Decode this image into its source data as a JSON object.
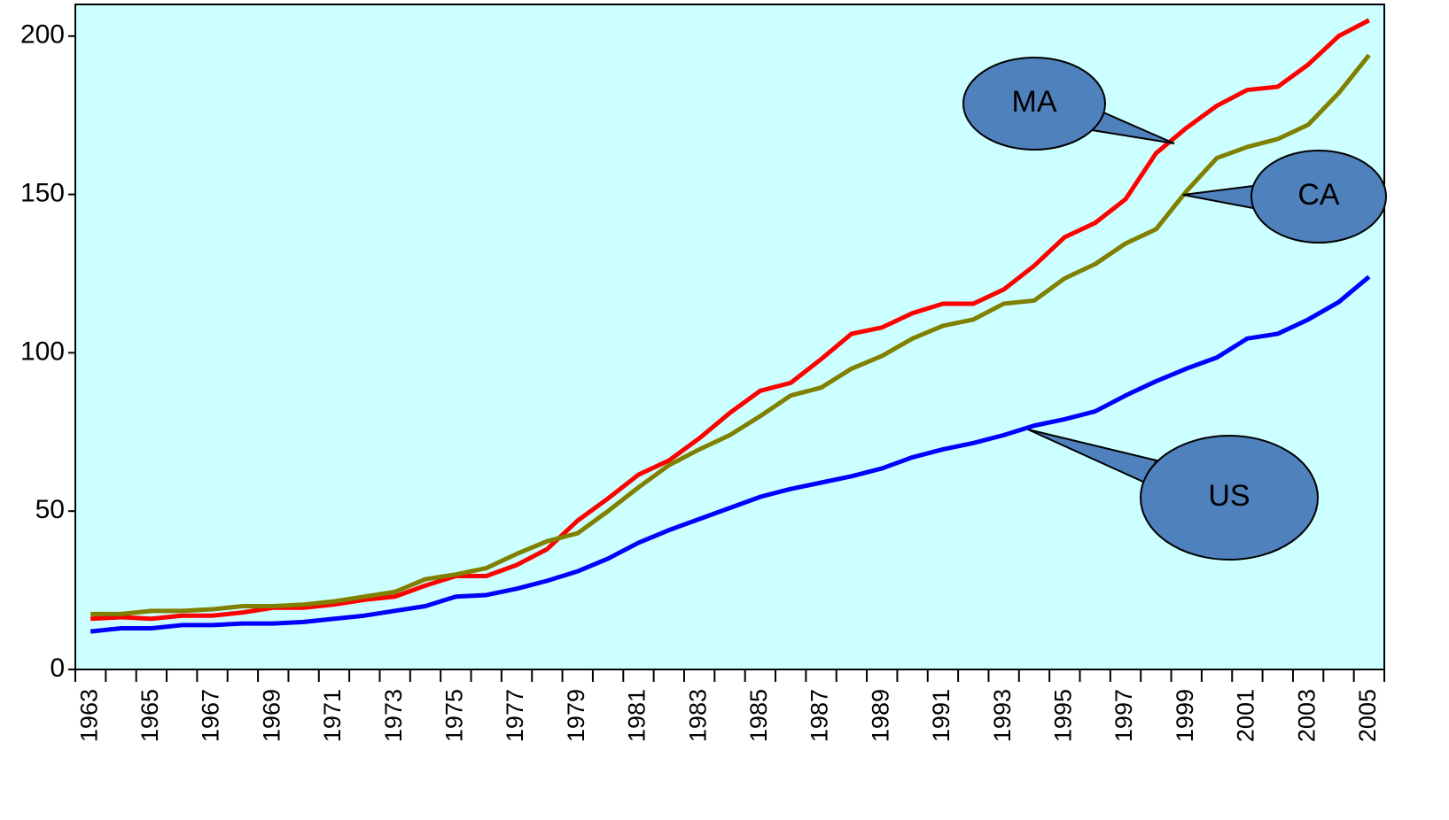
{
  "chart_data": {
    "type": "line",
    "categories": [
      "1963",
      null,
      "1965",
      null,
      "1967",
      null,
      "1969",
      null,
      "1971",
      null,
      "1973",
      null,
      "1975",
      null,
      "1977",
      null,
      "1979",
      null,
      "1981",
      null,
      "1983",
      null,
      "1985",
      null,
      "1987",
      null,
      "1989",
      null,
      "1991",
      null,
      "1993",
      null,
      "1995",
      null,
      "1997",
      null,
      "1999",
      null,
      "2001",
      null,
      "2003",
      null,
      "2005"
    ],
    "series": [
      {
        "name": "MA",
        "color": "#ff0000",
        "values": [
          16,
          16.5,
          16,
          17,
          17,
          18,
          19.5,
          19.5,
          20.5,
          22,
          23,
          26.5,
          29.5,
          29.5,
          33,
          38,
          47,
          54,
          61.5,
          66,
          73,
          81,
          88,
          90.5,
          98,
          106,
          108,
          112.5,
          115.5,
          115.5,
          120,
          127.5,
          136.5,
          141,
          148.5,
          163,
          171,
          178,
          183,
          184,
          191,
          200,
          205
        ]
      },
      {
        "name": "CA",
        "color": "#808000",
        "values": [
          17.5,
          17.5,
          18.5,
          18.5,
          19,
          20,
          20,
          20.5,
          21.5,
          23,
          24.5,
          28.5,
          30,
          32,
          36.5,
          40.5,
          43,
          50,
          57.5,
          64.5,
          69.5,
          74,
          80,
          86.5,
          89,
          95,
          99,
          104.5,
          108.5,
          110.5,
          115.5,
          116.5,
          123.5,
          128,
          134.5,
          139,
          151,
          161.5,
          165,
          167.5,
          172,
          182,
          194
        ]
      },
      {
        "name": "US",
        "color": "#0000ff",
        "values": [
          12,
          13,
          13,
          14,
          14,
          14.5,
          14.5,
          15,
          16,
          17,
          18.5,
          20,
          23,
          23.5,
          25.5,
          28,
          31,
          35,
          40,
          44,
          47.5,
          51,
          54.5,
          57,
          59,
          61,
          63.5,
          67,
          69.5,
          71.5,
          74,
          77,
          79,
          81.5,
          86.5,
          91,
          95,
          98.5,
          104.5,
          106,
          110.5,
          116,
          124
        ]
      }
    ],
    "annotations": [
      "MA",
      "CA",
      "US"
    ],
    "ylim": [
      0,
      210
    ],
    "yticks": [
      0,
      50,
      100,
      150,
      200
    ],
    "background": "#ccffff",
    "callout_color": "#4f81bd"
  }
}
